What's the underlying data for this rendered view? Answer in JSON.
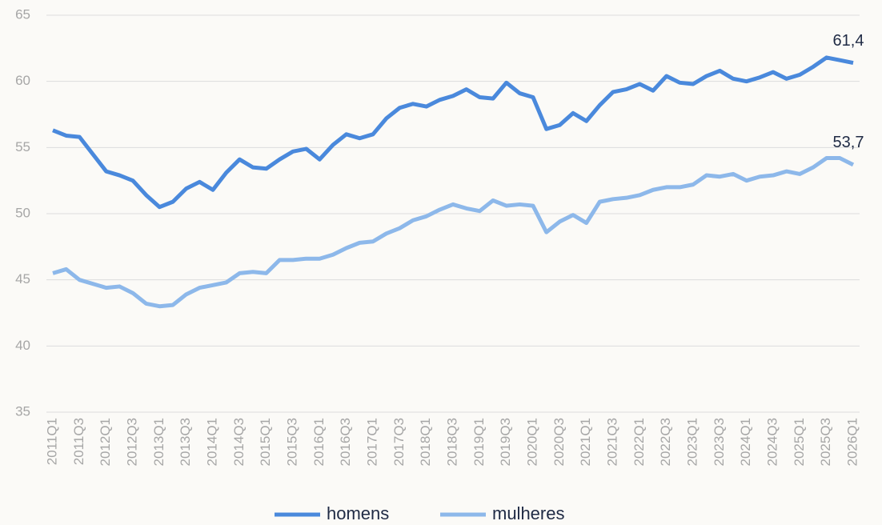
{
  "chart_data": {
    "type": "line",
    "categories": [
      "2011Q1",
      null,
      "2011Q3",
      null,
      "2012Q1",
      null,
      "2012Q3",
      null,
      "2013Q1",
      null,
      "2013Q3",
      null,
      "2014Q1",
      null,
      "2014Q3",
      null,
      "2015Q1",
      null,
      "2015Q3",
      null,
      "2016Q1",
      null,
      "2016Q3",
      null,
      "2017Q1",
      null,
      "2017Q3",
      null,
      "2018Q1",
      null,
      "2018Q3",
      null,
      "2019Q1",
      null,
      "2019Q3",
      null,
      "2020Q1",
      null,
      "2020Q3",
      null,
      "2021Q1",
      null,
      "2021Q3",
      null,
      "2022Q1",
      null,
      "2022Q3",
      null,
      "2023Q1",
      null,
      "2023Q3",
      null,
      "2024Q1",
      null,
      "2024Q3",
      null,
      "2025Q1",
      null,
      "2025Q3",
      null,
      "2026Q1"
    ],
    "series": [
      {
        "name": "homens",
        "color": "#4a89dc",
        "values": [
          56.3,
          55.9,
          55.8,
          54.5,
          53.2,
          52.9,
          52.5,
          51.4,
          50.5,
          50.9,
          51.9,
          52.4,
          51.8,
          53.1,
          54.1,
          53.5,
          53.4,
          54.1,
          54.7,
          54.9,
          54.1,
          55.2,
          56.0,
          55.7,
          56.0,
          57.2,
          58.0,
          58.3,
          58.1,
          58.6,
          58.9,
          59.4,
          58.8,
          58.7,
          59.9,
          59.1,
          58.8,
          56.4,
          56.7,
          57.6,
          57.0,
          58.2,
          59.2,
          59.4,
          59.8,
          59.3,
          60.4,
          59.9,
          59.8,
          60.4,
          60.8,
          60.2,
          60.0,
          60.3,
          60.7,
          60.2,
          60.5,
          61.1,
          61.8,
          61.6,
          61.4
        ],
        "value_labels": [
          null,
          null,
          null,
          null,
          null,
          null,
          null,
          null,
          null,
          null,
          null,
          null,
          null,
          null,
          null,
          null,
          null,
          null,
          null,
          null,
          null,
          null,
          null,
          null,
          null,
          null,
          null,
          null,
          null,
          null,
          null,
          null,
          null,
          null,
          null,
          null,
          null,
          null,
          null,
          null,
          null,
          null,
          null,
          null,
          null,
          null,
          null,
          null,
          null,
          null,
          null,
          null,
          null,
          null,
          null,
          null,
          null,
          null,
          null,
          null,
          "61,4"
        ]
      },
      {
        "name": "mulheres",
        "color": "#8db8ea",
        "values": [
          45.5,
          45.8,
          45.0,
          44.7,
          44.4,
          44.5,
          44.0,
          43.2,
          43.0,
          43.1,
          43.9,
          44.4,
          44.6,
          44.8,
          45.5,
          45.6,
          45.5,
          46.5,
          46.5,
          46.6,
          46.6,
          46.9,
          47.4,
          47.8,
          47.9,
          48.5,
          48.9,
          49.5,
          49.8,
          50.3,
          50.7,
          50.4,
          50.2,
          51.0,
          50.6,
          50.7,
          50.6,
          48.6,
          49.4,
          49.9,
          49.3,
          50.9,
          51.1,
          51.2,
          51.4,
          51.8,
          52.0,
          52.0,
          52.2,
          52.9,
          52.8,
          53.0,
          52.5,
          52.8,
          52.9,
          53.2,
          53.0,
          53.5,
          54.2,
          54.2,
          53.7
        ],
        "value_labels": [
          null,
          null,
          null,
          null,
          null,
          null,
          null,
          null,
          null,
          null,
          null,
          null,
          null,
          null,
          null,
          null,
          null,
          null,
          null,
          null,
          null,
          null,
          null,
          null,
          null,
          null,
          null,
          null,
          null,
          null,
          null,
          null,
          null,
          null,
          null,
          null,
          null,
          null,
          null,
          null,
          null,
          null,
          null,
          null,
          null,
          null,
          null,
          null,
          null,
          null,
          null,
          null,
          null,
          null,
          null,
          null,
          null,
          null,
          null,
          null,
          "53,7"
        ]
      }
    ],
    "ylim": [
      35,
      65
    ],
    "yticks": [
      35,
      40,
      45,
      50,
      55,
      60,
      65
    ],
    "grid": true,
    "legend": "bottom"
  }
}
